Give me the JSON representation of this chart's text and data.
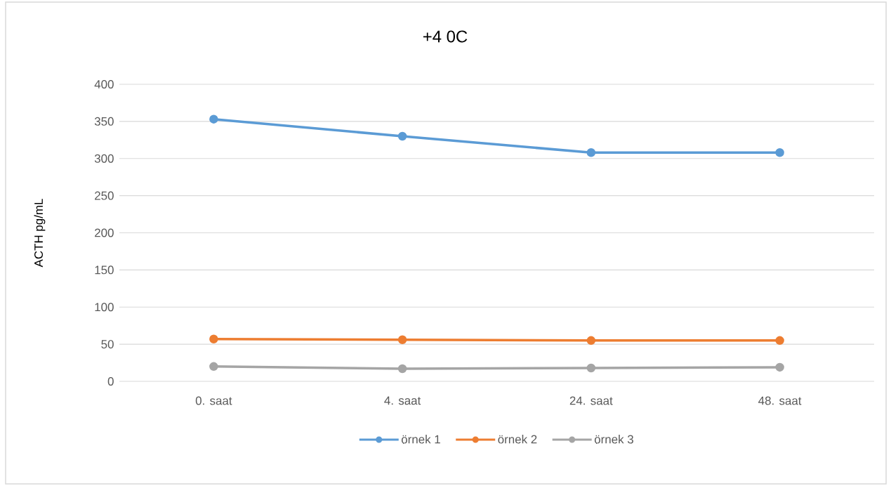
{
  "chart_data": {
    "type": "line",
    "title": "+4 0C",
    "ylabel": "ACTH pg/mL",
    "categories": [
      "0. saat",
      "4. saat",
      "24. saat",
      "48. saat"
    ],
    "series": [
      {
        "name": "örnek 1",
        "color": "#5b9bd5",
        "values": [
          353,
          330,
          308,
          308
        ]
      },
      {
        "name": "örnek 2",
        "color": "#ed7d31",
        "values": [
          57,
          56,
          55,
          55
        ]
      },
      {
        "name": "örnek 3",
        "color": "#a5a5a5",
        "values": [
          20,
          17,
          18,
          19
        ]
      }
    ],
    "ylim": [
      0,
      400
    ],
    "yticks": [
      0,
      50,
      100,
      150,
      200,
      250,
      300,
      350,
      400
    ],
    "grid": "y",
    "legend": "bottom",
    "marker": "circle",
    "line_style": "solid"
  }
}
